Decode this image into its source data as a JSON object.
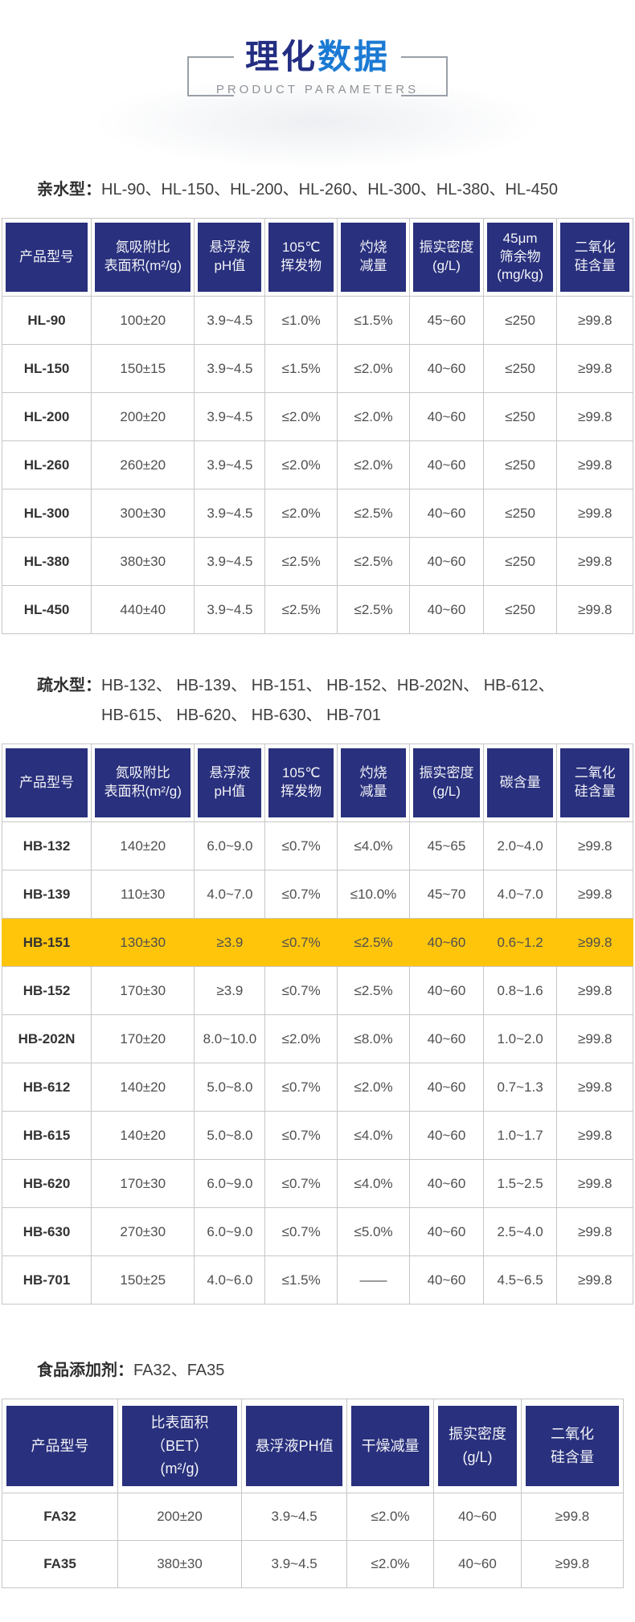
{
  "page": {
    "title_dark": "理化",
    "title_blue": "数据",
    "subtitle": "PRODUCT PARAMETERS"
  },
  "colors": {
    "header_navy": "#29307d",
    "title_dark_blue": "#232e82",
    "title_light_blue": "#1b7ad3",
    "highlight_yellow": "#fec50b",
    "grid_gray": "#c6c6c6"
  },
  "sections": [
    {
      "heading_label": "亲水型：",
      "heading_items": "HL-90、HL-150、HL-200、HL-260、HL-300、HL-380、HL-450",
      "table": {
        "columns": [
          "产品型号",
          "氮吸附比\n表面积(m²/g)",
          "悬浮液\npH值",
          "105℃\n挥发物",
          "灼烧\n减量",
          "振实密度\n(g/L)",
          "45μm\n筛余物\n(mg/kg)",
          "二氧化\n硅含量"
        ],
        "rows": [
          [
            "HL-90",
            "100±20",
            "3.9~4.5",
            "≤1.0%",
            "≤1.5%",
            "45~60",
            "≤250",
            "≥99.8"
          ],
          [
            "HL-150",
            "150±15",
            "3.9~4.5",
            "≤1.5%",
            "≤2.0%",
            "40~60",
            "≤250",
            "≥99.8"
          ],
          [
            "HL-200",
            "200±20",
            "3.9~4.5",
            "≤2.0%",
            "≤2.0%",
            "40~60",
            "≤250",
            "≥99.8"
          ],
          [
            "HL-260",
            "260±20",
            "3.9~4.5",
            "≤2.0%",
            "≤2.0%",
            "40~60",
            "≤250",
            "≥99.8"
          ],
          [
            "HL-300",
            "300±30",
            "3.9~4.5",
            "≤2.0%",
            "≤2.5%",
            "40~60",
            "≤250",
            "≥99.8"
          ],
          [
            "HL-380",
            "380±30",
            "3.9~4.5",
            "≤2.5%",
            "≤2.5%",
            "40~60",
            "≤250",
            "≥99.8"
          ],
          [
            "HL-450",
            "440±40",
            "3.9~4.5",
            "≤2.5%",
            "≤2.5%",
            "40~60",
            "≤250",
            "≥99.8"
          ]
        ]
      }
    },
    {
      "heading_label": "疏水型：",
      "heading_items": "HB-132、 HB-139、 HB-151、 HB-152、HB-202N、 HB-612、\nHB-615、 HB-620、 HB-630、 HB-701",
      "table": {
        "columns": [
          "产品型号",
          "氮吸附比\n表面积(m²/g)",
          "悬浮液\npH值",
          "105℃\n挥发物",
          "灼烧\n减量",
          "振实密度\n(g/L)",
          "碳含量",
          "二氧化\n硅含量"
        ],
        "highlighted_row_index": 2,
        "rows": [
          [
            "HB-132",
            "140±20",
            "6.0~9.0",
            "≤0.7%",
            "≤4.0%",
            "45~65",
            "2.0~4.0",
            "≥99.8"
          ],
          [
            "HB-139",
            "110±30",
            "4.0~7.0",
            "≤0.7%",
            "≤10.0%",
            "45~70",
            "4.0~7.0",
            "≥99.8"
          ],
          [
            "HB-151",
            "130±30",
            "≥3.9",
            "≤0.7%",
            "≤2.5%",
            "40~60",
            "0.6~1.2",
            "≥99.8"
          ],
          [
            "HB-152",
            "170±30",
            "≥3.9",
            "≤0.7%",
            "≤2.5%",
            "40~60",
            "0.8~1.6",
            "≥99.8"
          ],
          [
            "HB-202N",
            "170±20",
            "8.0~10.0",
            "≤2.0%",
            "≤8.0%",
            "40~60",
            "1.0~2.0",
            "≥99.8"
          ],
          [
            "HB-612",
            "140±20",
            "5.0~8.0",
            "≤0.7%",
            "≤2.0%",
            "40~60",
            "0.7~1.3",
            "≥99.8"
          ],
          [
            "HB-615",
            "140±20",
            "5.0~8.0",
            "≤0.7%",
            "≤4.0%",
            "40~60",
            "1.0~1.7",
            "≥99.8"
          ],
          [
            "HB-620",
            "170±30",
            "6.0~9.0",
            "≤0.7%",
            "≤4.0%",
            "40~60",
            "1.5~2.5",
            "≥99.8"
          ],
          [
            "HB-630",
            "270±30",
            "6.0~9.0",
            "≤0.7%",
            "≤5.0%",
            "40~60",
            "2.5~4.0",
            "≥99.8"
          ],
          [
            "HB-701",
            "150±25",
            "4.0~6.0",
            "≤1.5%",
            "——",
            "40~60",
            "4.5~6.5",
            "≥99.8"
          ]
        ]
      }
    },
    {
      "heading_label": "食品添加剂：",
      "heading_items": "FA32、FA35",
      "table": {
        "columns": [
          "产品型号",
          "比表面积（BET）\n(m²/g)",
          "悬浮液PH值",
          "干燥减量",
          "振实密度\n(g/L)",
          "二氧化\n硅含量"
        ],
        "rows": [
          [
            "FA32",
            "200±20",
            "3.9~4.5",
            "≤2.0%",
            "40~60",
            "≥99.8"
          ],
          [
            "FA35",
            "380±30",
            "3.9~4.5",
            "≤2.0%",
            "40~60",
            "≥99.8"
          ]
        ]
      }
    }
  ]
}
